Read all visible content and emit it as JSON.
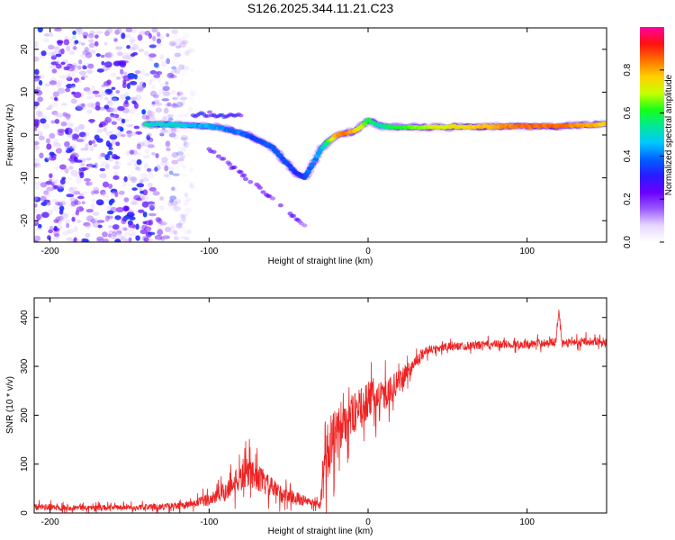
{
  "chart_data": [
    {
      "type": "heatmap",
      "title": "S126.2025.344.11.21.C23",
      "xlabel": "Height of straight line (km)",
      "ylabel": "Frequency (Hz)",
      "xlim": [
        -210,
        150
      ],
      "ylim": [
        -25,
        25
      ],
      "xticks": [
        -200,
        -100,
        0,
        100
      ],
      "yticks": [
        -20,
        -10,
        0,
        10,
        20
      ],
      "colorbar": {
        "label": "Normalized spectral amplitude",
        "range": [
          0,
          1
        ],
        "ticks": [
          "0.0",
          "0.2",
          "0.4",
          "0.6",
          "0.8"
        ],
        "colors": [
          "#ffffff",
          "#e8d8ff",
          "#9a5cff",
          "#6a00ff",
          "#2a1aff",
          "#0060ff",
          "#00c8ff",
          "#00e89a",
          "#18ff18",
          "#c8ff00",
          "#ffd000",
          "#ff7000",
          "#ff1010",
          "#ff00a0"
        ]
      },
      "ridge": {
        "x": [
          -140,
          -130,
          -120,
          -110,
          -100,
          -90,
          -80,
          -70,
          -60,
          -50,
          -45,
          -40,
          -35,
          -30,
          -25,
          -20,
          -15,
          -10,
          -5,
          0,
          5,
          10,
          20,
          40,
          60,
          80,
          100,
          120,
          140,
          150
        ],
        "y": [
          2.5,
          2.5,
          2.4,
          2.2,
          2.0,
          1.5,
          0.5,
          -1,
          -3,
          -7,
          -9,
          -10,
          -7,
          -3.5,
          -1.5,
          0,
          0.3,
          0.7,
          1.8,
          3.5,
          2.5,
          2,
          1.8,
          1.8,
          1.9,
          2,
          2,
          2.1,
          2.4,
          2.6
        ],
        "amplitude": [
          0.55,
          0.5,
          0.5,
          0.45,
          0.45,
          0.4,
          0.4,
          0.35,
          0.4,
          0.35,
          0.3,
          0.35,
          0.4,
          0.45,
          0.6,
          0.8,
          0.85,
          0.8,
          0.7,
          0.6,
          0.55,
          0.55,
          0.6,
          0.7,
          0.75,
          0.8,
          0.85,
          0.85,
          0.8,
          0.75
        ]
      },
      "noise_region_xmax": -120
    },
    {
      "type": "line",
      "xlabel": "Height of straight line (km)",
      "ylabel": "SNR (10 * v/v)",
      "xlim": [
        -210,
        150
      ],
      "ylim": [
        0,
        440
      ],
      "xticks": [
        -200,
        -100,
        0,
        100
      ],
      "yticks": [
        0,
        100,
        200,
        300,
        400
      ],
      "color": "#ee2222",
      "series": [
        {
          "name": "SNR",
          "x": [
            -210,
            -180,
            -150,
            -120,
            -110,
            -100,
            -95,
            -90,
            -85,
            -80,
            -75,
            -70,
            -65,
            -60,
            -55,
            -50,
            -45,
            -40,
            -35,
            -30,
            -27,
            -25,
            -22,
            -20,
            -15,
            -10,
            -5,
            0,
            5,
            10,
            15,
            20,
            25,
            30,
            35,
            40,
            50,
            60,
            80,
            100,
            110,
            118,
            120,
            122,
            130,
            140,
            150
          ],
          "y": [
            12,
            11,
            11,
            14,
            18,
            28,
            35,
            45,
            60,
            70,
            85,
            75,
            60,
            50,
            40,
            35,
            30,
            25,
            20,
            15,
            140,
            120,
            160,
            150,
            190,
            200,
            215,
            230,
            235,
            240,
            255,
            270,
            290,
            310,
            330,
            335,
            340,
            342,
            345,
            345,
            348,
            350,
            420,
            345,
            350,
            352,
            350
          ],
          "noise_amplitude": [
            10,
            8,
            8,
            10,
            12,
            20,
            25,
            30,
            35,
            40,
            45,
            40,
            35,
            30,
            25,
            20,
            20,
            15,
            12,
            10,
            90,
            90,
            80,
            80,
            70,
            60,
            55,
            55,
            50,
            45,
            40,
            30,
            25,
            20,
            15,
            12,
            12,
            12,
            12,
            12,
            12,
            12,
            12,
            12,
            12,
            12,
            12
          ]
        }
      ]
    }
  ]
}
